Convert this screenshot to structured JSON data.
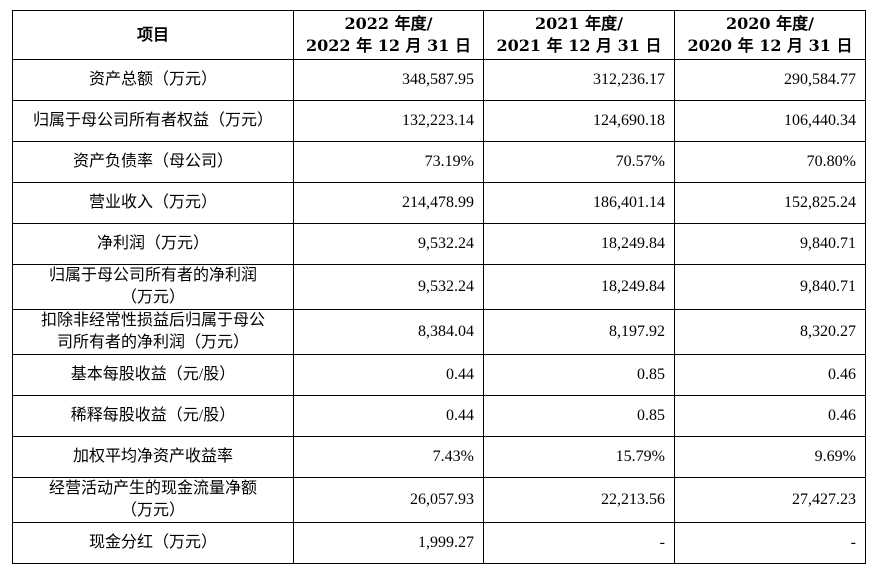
{
  "header": {
    "item": "项目",
    "col2022_line1": "2022 年度/",
    "col2022_line2": "2022 年 12 月 31 日",
    "col2021_line1": "2021 年度/",
    "col2021_line2": "2021 年 12 月 31 日",
    "col2020_line1": "2020 年度/",
    "col2020_line2": "2020 年 12 月 31 日"
  },
  "rows": [
    {
      "label_line1": "资产总额（万元）",
      "label_line2": "",
      "v2022": "348,587.95",
      "v2021": "312,236.17",
      "v2020": "290,584.77"
    },
    {
      "label_line1": "归属于母公司所有者权益（万元）",
      "label_line2": "",
      "v2022": "132,223.14",
      "v2021": "124,690.18",
      "v2020": "106,440.34"
    },
    {
      "label_line1": "资产负债率（母公司）",
      "label_line2": "",
      "v2022": "73.19%",
      "v2021": "70.57%",
      "v2020": "70.80%"
    },
    {
      "label_line1": "营业收入（万元）",
      "label_line2": "",
      "v2022": "214,478.99",
      "v2021": "186,401.14",
      "v2020": "152,825.24"
    },
    {
      "label_line1": "净利润（万元）",
      "label_line2": "",
      "v2022": "9,532.24",
      "v2021": "18,249.84",
      "v2020": "9,840.71"
    },
    {
      "label_line1": "归属于母公司所有者的净利润",
      "label_line2": "（万元）",
      "v2022": "9,532.24",
      "v2021": "18,249.84",
      "v2020": "9,840.71"
    },
    {
      "label_line1": "扣除非经常性损益后归属于母公",
      "label_line2": "司所有者的净利润（万元）",
      "v2022": "8,384.04",
      "v2021": "8,197.92",
      "v2020": "8,320.27"
    },
    {
      "label_line1": "基本每股收益（元/股）",
      "label_line2": "",
      "v2022": "0.44",
      "v2021": "0.85",
      "v2020": "0.46"
    },
    {
      "label_line1": "稀释每股收益（元/股）",
      "label_line2": "",
      "v2022": "0.44",
      "v2021": "0.85",
      "v2020": "0.46"
    },
    {
      "label_line1": "加权平均净资产收益率",
      "label_line2": "",
      "v2022": "7.43%",
      "v2021": "15.79%",
      "v2020": "9.69%"
    },
    {
      "label_line1": "经营活动产生的现金流量净额",
      "label_line2": "（万元）",
      "v2022": "26,057.93",
      "v2021": "22,213.56",
      "v2020": "27,427.23"
    },
    {
      "label_line1": "现金分红（万元）",
      "label_line2": "",
      "v2022": "1,999.27",
      "v2021": "-",
      "v2020": "-"
    }
  ]
}
